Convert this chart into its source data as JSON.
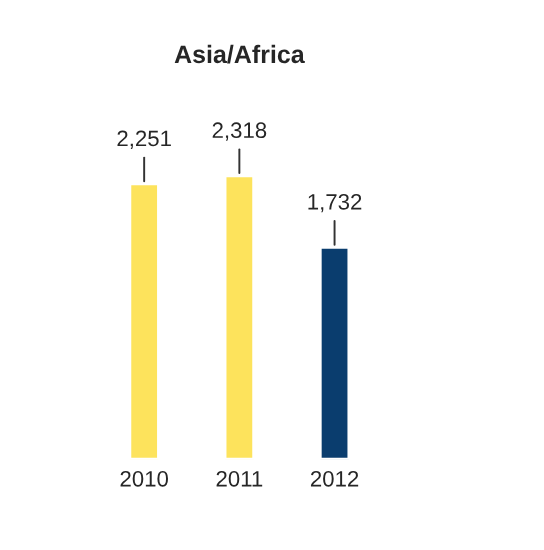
{
  "chart_data": {
    "type": "bar",
    "title": "Asia/Africa",
    "categories": [
      "2010",
      "2011",
      "2012"
    ],
    "values": [
      2251,
      2318,
      1732
    ],
    "colors": [
      "#fde35c",
      "#fde35c",
      "#0a3d6e"
    ],
    "value_labels": [
      "2,251",
      "2,318",
      "1,732"
    ],
    "grid": false,
    "legend": false,
    "tick_labels": "x"
  }
}
